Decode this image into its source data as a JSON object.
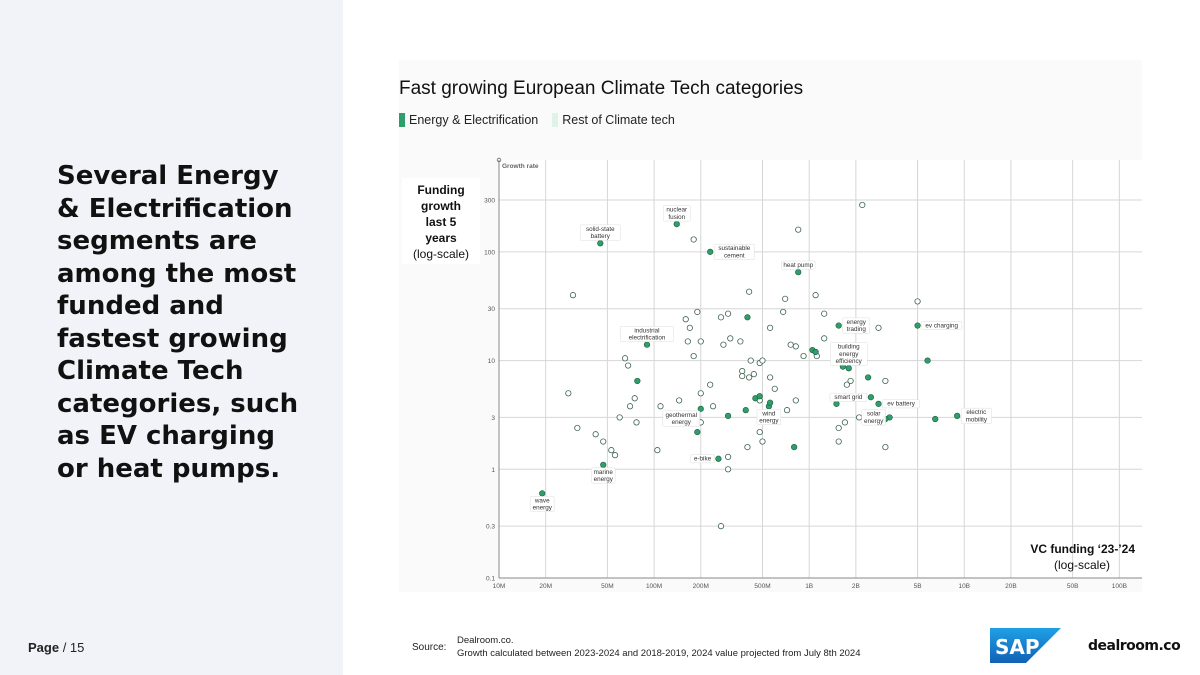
{
  "headline": "Several Energy & Electrification segments are among the most funded and fastest growing Climate Tech categories, such as EV charging or heat pumps.",
  "page": {
    "label": "Page",
    "number": "/ 15"
  },
  "source": {
    "label": "Source:",
    "line1": "Dealroom.co.",
    "line2": "Growth calculated between 2023-2024 and 2018-2019, 2024 value projected from July 8th 2024"
  },
  "logos": {
    "sap": "SAP",
    "dealroom": "dealroom.co"
  },
  "colors": {
    "energy": "#2e9e6a",
    "rest": "#ffffff",
    "rest_stroke": "#4a6a5a",
    "legend_rest": "#dff3e8",
    "grid": "#d3d3d3",
    "panel": "#f2f3f8",
    "sap_blue": "#1b73c7"
  },
  "chart_data": {
    "type": "scatter",
    "title": "Fast growing European Climate Tech categories",
    "xlabel": "VC funding ‘23-’24",
    "xlabel_sub": "(log-scale)",
    "ylabel": "Funding growth last 5 years",
    "ylabel_sub": "(log-scale)",
    "y_axis_tag": "Growth rate",
    "x_scale": "log",
    "y_scale": "log",
    "xlim": [
      10,
      140000
    ],
    "ylim": [
      0.1,
      700
    ],
    "x_ticks": [
      10,
      20,
      50,
      100,
      200,
      500,
      1000,
      2000,
      5000,
      10000,
      20000,
      50000,
      100000
    ],
    "x_tick_labels": [
      "10M",
      "20M",
      "50M",
      "100M",
      "200M",
      "500M",
      "1B",
      "2B",
      "5B",
      "10B",
      "20B",
      "50B",
      "100B"
    ],
    "y_ticks": [
      0.1,
      0.3,
      1,
      3,
      10,
      30,
      100,
      300
    ],
    "y_tick_labels": [
      "0.1",
      "0.3",
      "1",
      "3",
      "10",
      "30",
      "100",
      "300"
    ],
    "grid": true,
    "series": [
      {
        "name": "Energy & Electrification",
        "points": [
          {
            "x": 140,
            "y": 180,
            "label": "nuclear\nfusion"
          },
          {
            "x": 45,
            "y": 120,
            "label": "solid-state\nbattery"
          },
          {
            "x": 230,
            "y": 100,
            "label": "sustainable\ncement"
          },
          {
            "x": 850,
            "y": 65,
            "label": "heat pump"
          },
          {
            "x": 90,
            "y": 14,
            "label": "industrial\nelectrification"
          },
          {
            "x": 1550,
            "y": 21,
            "label": "energy\ntrading"
          },
          {
            "x": 1800,
            "y": 8.5,
            "label": "building\nenergy\nefficiency"
          },
          {
            "x": 5000,
            "y": 21,
            "label": "ev charging"
          },
          {
            "x": 2500,
            "y": 4.6,
            "label": "smart grid"
          },
          {
            "x": 2800,
            "y": 4,
            "label": "ev battery"
          },
          {
            "x": 3300,
            "y": 3,
            "label": "solar\nenergy"
          },
          {
            "x": 550,
            "y": 3.8,
            "label": "wind\nenergy"
          },
          {
            "x": 200,
            "y": 3.6,
            "label": "geothermal\nenergy"
          },
          {
            "x": 260,
            "y": 1.25,
            "label": "e-bike"
          },
          {
            "x": 47,
            "y": 1.1,
            "label": "marine\nenergy"
          },
          {
            "x": 19,
            "y": 0.6,
            "label": "wave\nenergy"
          },
          {
            "x": 9000,
            "y": 3.1,
            "label": "electric\nmobility"
          },
          {
            "x": 78,
            "y": 6.5
          },
          {
            "x": 400,
            "y": 25
          },
          {
            "x": 1050,
            "y": 12.5
          },
          {
            "x": 1100,
            "y": 12
          },
          {
            "x": 1650,
            "y": 8.8
          },
          {
            "x": 2400,
            "y": 7
          },
          {
            "x": 1500,
            "y": 4
          },
          {
            "x": 5800,
            "y": 10
          },
          {
            "x": 6500,
            "y": 2.9
          },
          {
            "x": 390,
            "y": 3.5
          },
          {
            "x": 450,
            "y": 4.5
          },
          {
            "x": 480,
            "y": 4.7
          },
          {
            "x": 560,
            "y": 4.1
          },
          {
            "x": 300,
            "y": 3.1
          },
          {
            "x": 190,
            "y": 2.2
          },
          {
            "x": 800,
            "y": 1.6
          },
          {
            "x": 3100,
            "y": 2.9
          }
        ]
      },
      {
        "name": "Rest of Climate tech",
        "points": [
          {
            "x": 2200,
            "y": 270
          },
          {
            "x": 850,
            "y": 160
          },
          {
            "x": 180,
            "y": 130
          },
          {
            "x": 30,
            "y": 40
          },
          {
            "x": 1100,
            "y": 40
          },
          {
            "x": 410,
            "y": 43
          },
          {
            "x": 700,
            "y": 37
          },
          {
            "x": 5000,
            "y": 35
          },
          {
            "x": 680,
            "y": 28
          },
          {
            "x": 190,
            "y": 28
          },
          {
            "x": 160,
            "y": 24
          },
          {
            "x": 300,
            "y": 27
          },
          {
            "x": 270,
            "y": 25
          },
          {
            "x": 1250,
            "y": 27
          },
          {
            "x": 170,
            "y": 20
          },
          {
            "x": 2800,
            "y": 20
          },
          {
            "x": 560,
            "y": 20
          },
          {
            "x": 1250,
            "y": 16
          },
          {
            "x": 165,
            "y": 15
          },
          {
            "x": 200,
            "y": 15
          },
          {
            "x": 310,
            "y": 16
          },
          {
            "x": 360,
            "y": 15
          },
          {
            "x": 280,
            "y": 14
          },
          {
            "x": 760,
            "y": 14
          },
          {
            "x": 820,
            "y": 13.5
          },
          {
            "x": 1120,
            "y": 11
          },
          {
            "x": 180,
            "y": 11
          },
          {
            "x": 65,
            "y": 10.5
          },
          {
            "x": 68,
            "y": 9
          },
          {
            "x": 420,
            "y": 10
          },
          {
            "x": 480,
            "y": 9.5
          },
          {
            "x": 500,
            "y": 10
          },
          {
            "x": 920,
            "y": 11
          },
          {
            "x": 370,
            "y": 8
          },
          {
            "x": 410,
            "y": 7
          },
          {
            "x": 440,
            "y": 7.5
          },
          {
            "x": 560,
            "y": 7
          },
          {
            "x": 370,
            "y": 7.2
          },
          {
            "x": 3100,
            "y": 6.5
          },
          {
            "x": 600,
            "y": 5.5
          },
          {
            "x": 230,
            "y": 6
          },
          {
            "x": 200,
            "y": 5
          },
          {
            "x": 1750,
            "y": 6
          },
          {
            "x": 1850,
            "y": 6.5
          },
          {
            "x": 28,
            "y": 5
          },
          {
            "x": 75,
            "y": 4.5
          },
          {
            "x": 70,
            "y": 3.8
          },
          {
            "x": 145,
            "y": 4.3
          },
          {
            "x": 110,
            "y": 3.8
          },
          {
            "x": 240,
            "y": 3.8
          },
          {
            "x": 480,
            "y": 4.3
          },
          {
            "x": 820,
            "y": 4.3
          },
          {
            "x": 720,
            "y": 3.5
          },
          {
            "x": 60,
            "y": 3
          },
          {
            "x": 77,
            "y": 2.7
          },
          {
            "x": 200,
            "y": 2.7
          },
          {
            "x": 2100,
            "y": 3
          },
          {
            "x": 1700,
            "y": 2.7
          },
          {
            "x": 1550,
            "y": 2.4
          },
          {
            "x": 480,
            "y": 2.2
          },
          {
            "x": 500,
            "y": 1.8
          },
          {
            "x": 400,
            "y": 1.6
          },
          {
            "x": 32,
            "y": 2.4
          },
          {
            "x": 42,
            "y": 2.1
          },
          {
            "x": 47,
            "y": 1.8
          },
          {
            "x": 53,
            "y": 1.5
          },
          {
            "x": 56,
            "y": 1.35
          },
          {
            "x": 105,
            "y": 1.5
          },
          {
            "x": 300,
            "y": 1.3
          },
          {
            "x": 1550,
            "y": 1.8
          },
          {
            "x": 3100,
            "y": 1.6
          },
          {
            "x": 300,
            "y": 1
          },
          {
            "x": 270,
            "y": 0.3
          }
        ]
      }
    ]
  }
}
